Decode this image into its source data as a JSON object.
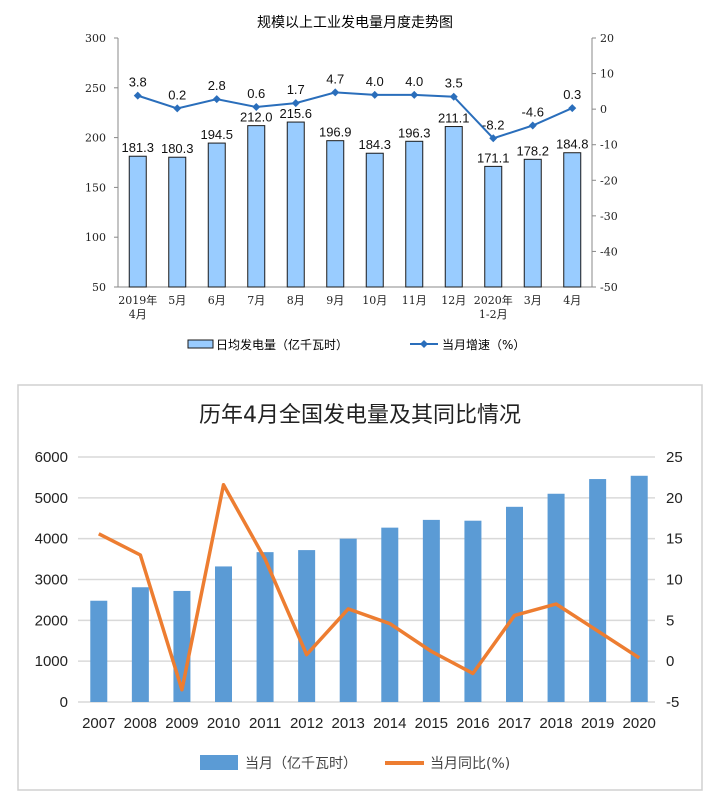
{
  "chart_data": [
    {
      "type": "bar+line",
      "title": "规模以上工业发电量月度走势图",
      "categories": [
        "2019年\n4月",
        "5月",
        "6月",
        "7月",
        "8月",
        "9月",
        "10月",
        "11月",
        "12月",
        "2020年\n1-2月",
        "3月",
        "4月"
      ],
      "series": [
        {
          "name": "日均发电量（亿千瓦时）",
          "type": "bar",
          "axis": "left",
          "color": "#99ccff",
          "values": [
            181.3,
            180.3,
            194.5,
            212.0,
            215.6,
            196.9,
            184.3,
            196.3,
            211.1,
            171.1,
            178.2,
            184.8
          ]
        },
        {
          "name": "当月增速（%）",
          "type": "line",
          "axis": "right",
          "color": "#2a6ebb",
          "values": [
            3.8,
            0.2,
            2.8,
            0.6,
            1.7,
            4.7,
            4.0,
            4.0,
            3.5,
            -8.2,
            -4.6,
            0.3
          ]
        }
      ],
      "left_ylim": [
        50,
        300
      ],
      "left_ticks": [
        50,
        100,
        150,
        200,
        250,
        300
      ],
      "right_ylim": [
        -50,
        20
      ],
      "right_ticks": [
        -50,
        -40,
        -30,
        -20,
        -10,
        0,
        10,
        20
      ],
      "data_labels": true,
      "grid": false,
      "legend": "bottom"
    },
    {
      "type": "bar+line",
      "title": "历年4月全国发电量及其同比情况",
      "categories": [
        "2007",
        "2008",
        "2009",
        "2010",
        "2011",
        "2012",
        "2013",
        "2014",
        "2015",
        "2016",
        "2017",
        "2018",
        "2019",
        "2020"
      ],
      "series": [
        {
          "name": "当月（亿千瓦时）",
          "type": "bar",
          "axis": "left",
          "color": "#5b9bd5",
          "values": [
            2480,
            2810,
            2720,
            3320,
            3670,
            3720,
            4000,
            4270,
            4460,
            4440,
            4780,
            5100,
            5460,
            5540
          ]
        },
        {
          "name": "当月同比(%)",
          "type": "line",
          "axis": "right",
          "color": "#ed7d31",
          "values": [
            15.6,
            13.0,
            -3.5,
            21.6,
            12.5,
            0.8,
            6.4,
            4.6,
            1.2,
            -1.5,
            5.6,
            7.0,
            3.7,
            0.4
          ]
        }
      ],
      "left_ylim": [
        0,
        6000
      ],
      "left_ticks": [
        0,
        1000,
        2000,
        3000,
        4000,
        5000,
        6000
      ],
      "right_ylim": [
        -5,
        25
      ],
      "right_ticks": [
        -5,
        0,
        5,
        10,
        15,
        20,
        25
      ],
      "grid": true,
      "legend": "bottom"
    }
  ]
}
